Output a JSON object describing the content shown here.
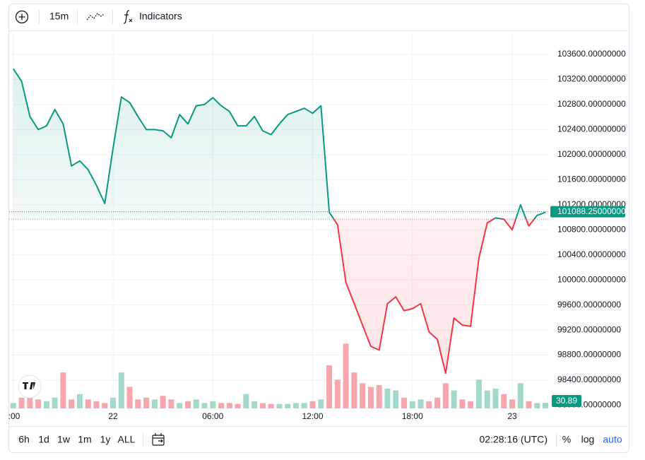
{
  "toolbar": {
    "interval": "15m",
    "indicators": "Indicators"
  },
  "chart_data": {
    "type": "baseline",
    "categories": [
      ":00",
      null,
      null,
      null,
      null,
      null,
      null,
      null,
      null,
      null,
      null,
      null,
      "22",
      null,
      null,
      null,
      null,
      null,
      null,
      null,
      null,
      null,
      null,
      null,
      "06:00",
      null,
      null,
      null,
      null,
      null,
      null,
      null,
      null,
      null,
      null,
      null,
      "12:00",
      null,
      null,
      null,
      null,
      null,
      null,
      null,
      null,
      null,
      null,
      null,
      "18:00",
      null,
      null,
      null,
      null,
      null,
      null,
      null,
      null,
      null,
      null,
      null,
      "23",
      null,
      null,
      null,
      null
    ],
    "values": [
      103370,
      103170,
      102610,
      102400,
      102460,
      102720,
      102490,
      101820,
      101900,
      101760,
      101510,
      101220,
      102100,
      102920,
      102830,
      102610,
      102400,
      102400,
      102380,
      102270,
      102640,
      102490,
      102780,
      102800,
      102910,
      102780,
      102690,
      102460,
      102460,
      102610,
      102380,
      102320,
      102490,
      102640,
      102690,
      102740,
      102660,
      102780,
      101080,
      100880,
      99960,
      99620,
      99280,
      98940,
      98880,
      99620,
      99730,
      99510,
      99540,
      99620,
      99170,
      99050,
      98510,
      99390,
      99280,
      99260,
      100350,
      100910,
      100990,
      100970,
      100800,
      101200,
      100860,
      101030,
      101080
    ],
    "baseline": 100970,
    "colors": {
      "up": "#089981",
      "down": "#f23645"
    },
    "ylim": [
      97949,
      103972
    ],
    "yticks": [
      {
        "value": 98000,
        "label": "98000.00000000"
      },
      {
        "value": 98400,
        "label": "98400.00000000"
      },
      {
        "value": 98800,
        "label": "98800.00000000"
      },
      {
        "value": 99200,
        "label": "99200.00000000"
      },
      {
        "value": 99600,
        "label": "99600.00000000"
      },
      {
        "value": 100000,
        "label": "100000.00000000"
      },
      {
        "value": 100400,
        "label": "100400.00000000"
      },
      {
        "value": 100800,
        "label": "100800.00000000"
      },
      {
        "value": 101200,
        "label": "101200.00000000"
      },
      {
        "value": 101600,
        "label": "101600.00000000"
      },
      {
        "value": 102000,
        "label": "102000.00000000"
      },
      {
        "value": 102400,
        "label": "102400.00000000"
      },
      {
        "value": 102800,
        "label": "102800.00000000"
      },
      {
        "value": 103200,
        "label": "103200.00000000"
      },
      {
        "value": 103600,
        "label": "103600.00000000"
      }
    ],
    "last_price": {
      "value": 101088.25,
      "label": "101088.25000000"
    },
    "grid": true,
    "volume": {
      "values": [
        30,
        60,
        70,
        50,
        40,
        60,
        200,
        50,
        80,
        50,
        40,
        30,
        60,
        200,
        120,
        50,
        60,
        50,
        70,
        50,
        30,
        40,
        50,
        30,
        40,
        30,
        30,
        25,
        80,
        40,
        30,
        25,
        25,
        25,
        30,
        30,
        40,
        50,
        240,
        160,
        360,
        200,
        140,
        120,
        130,
        110,
        100,
        60,
        40,
        50,
        40,
        60,
        140,
        100,
        50,
        40,
        160,
        100,
        110,
        80,
        50,
        140,
        40,
        30,
        30.89
      ],
      "ylim": [
        0,
        2100
      ],
      "up_color": "#a3d9cb",
      "down_color": "#f7a6ae"
    }
  },
  "footer": {
    "ranges": [
      "6h",
      "1d",
      "1w",
      "1m",
      "1y",
      "ALL"
    ],
    "time": "02:28:16 (UTC)",
    "scale_options": [
      "%",
      "log",
      "auto"
    ]
  }
}
